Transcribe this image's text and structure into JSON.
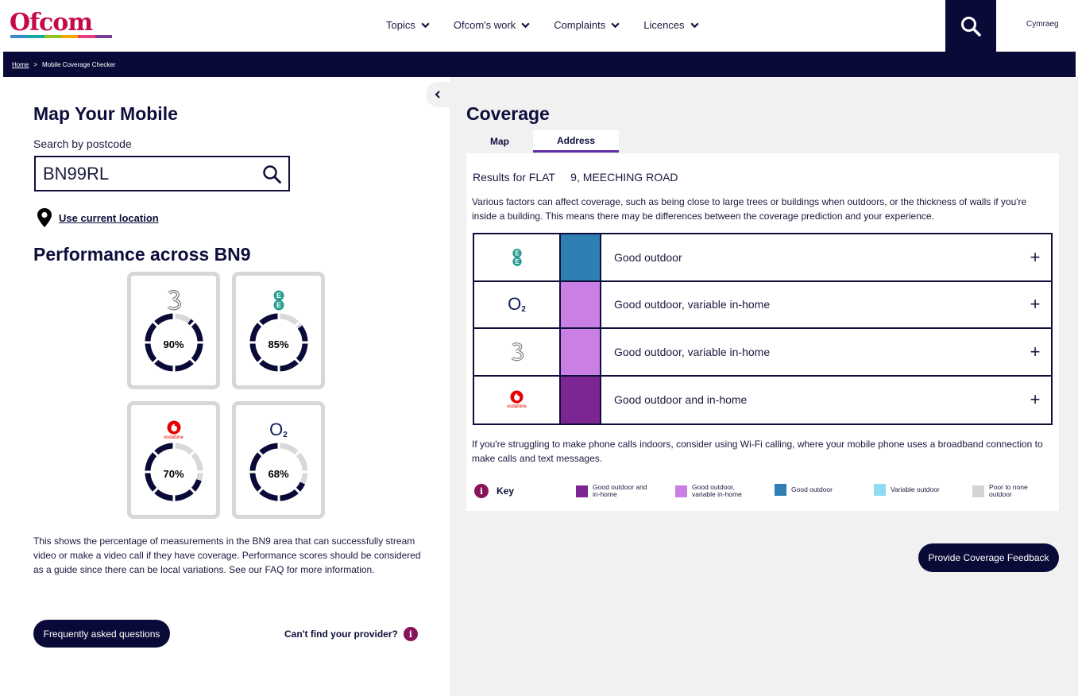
{
  "header": {
    "logo_text": "Ofcom",
    "logo_stripe_colors": [
      "#3a8bd1",
      "#17a7a4",
      "#94c11f",
      "#f5a800",
      "#e73c7e",
      "#7b3c98"
    ],
    "nav": [
      {
        "label": "Topics",
        "icon": "chevron-down-icon"
      },
      {
        "label": "Ofcom's work",
        "icon": "chevron-down-icon"
      },
      {
        "label": "Complaints",
        "icon": "chevron-down-icon"
      },
      {
        "label": "Licences",
        "icon": "chevron-down-icon"
      }
    ],
    "search_icon": "search-icon",
    "language_link": "Cymraeg"
  },
  "breadcrumb": {
    "home": "Home",
    "separator": ">",
    "current": "Mobile Coverage Checker"
  },
  "left": {
    "collapse_icon": "chevron-left-icon",
    "title": "Map Your Mobile",
    "search_label": "Search by postcode",
    "search_value": "BN99RL",
    "search_icon": "search-icon",
    "location_icon": "map-pin-icon",
    "use_location": "Use current location",
    "performance_title": "Performance across BN9",
    "providers": [
      {
        "name": "3",
        "logo": "three-logo",
        "percent": 90,
        "percent_label": "90%"
      },
      {
        "name": "EE",
        "logo": "ee-logo",
        "percent": 85,
        "percent_label": "85%"
      },
      {
        "name": "Vodafone",
        "logo": "vodafone-logo",
        "logo_text": "vodafone",
        "percent": 70,
        "percent_label": "70%"
      },
      {
        "name": "O2",
        "logo": "o2-logo",
        "logo_text": "O",
        "logo_sub": "2",
        "percent": 68,
        "percent_label": "68%"
      }
    ],
    "performance_note": "This shows the percentage of measurements in the BN9 area that can successfully stream video or make a video call if they have coverage. Performance scores should be considered as a guide since there can be local variations. See our FAQ for more information.",
    "faq_button": "Frequently asked questions",
    "cant_find": "Can't find your provider?",
    "info_icon": "info-icon"
  },
  "right": {
    "title": "Coverage",
    "tabs": [
      {
        "label": "Map",
        "active": false
      },
      {
        "label": "Address",
        "active": true
      }
    ],
    "results_for": "Results for FLAT     9, MEECHING ROAD",
    "note": "Various factors can affect coverage, such as being close to large trees or buildings when outdoors, or the thickness of walls if you're inside a building. This means there may be differences between the coverage prediction and your experience.",
    "rows": [
      {
        "operator": "EE",
        "logo": "ee-logo",
        "color": "#2e7fb3",
        "status": "Good outdoor",
        "expand": "+"
      },
      {
        "operator": "O2",
        "logo": "o2-logo",
        "color": "#c97fe3",
        "status": "Good outdoor, variable in-home",
        "expand": "+"
      },
      {
        "operator": "3",
        "logo": "three-logo",
        "color": "#c97fe3",
        "status": "Good outdoor, variable in-home",
        "expand": "+"
      },
      {
        "operator": "Vodafone",
        "logo": "vodafone-logo",
        "color": "#7d2593",
        "status": "Good outdoor and in-home",
        "expand": "+"
      }
    ],
    "wifi_note": "If you're struggling to make phone calls indoors, consider using Wi-Fi calling, where your mobile phone uses a broadband connection to make calls and text messages.",
    "key_title": "Key",
    "key": [
      {
        "label": "Good outdoor and in-home",
        "color": "#7d2593"
      },
      {
        "label": "Good outdoor, variable in-home",
        "color": "#c97fe3"
      },
      {
        "label": "Good outdoor",
        "color": "#2e7fb3"
      },
      {
        "label": "Variable outdoor",
        "color": "#8fdcf2"
      },
      {
        "label": "Poor to none outdoor",
        "color": "#d4d4d4"
      }
    ],
    "feedback_button": "Provide Coverage Feedback"
  },
  "colors": {
    "navy": "#0a0a38",
    "accent_purple": "#5f2ca3",
    "info_plum": "#8a1459",
    "ofcom_red": "#c40a4a",
    "ee_teal": "#2a9d92",
    "vodafone_red": "#e60000",
    "panel_grey": "#f1f1f1"
  }
}
